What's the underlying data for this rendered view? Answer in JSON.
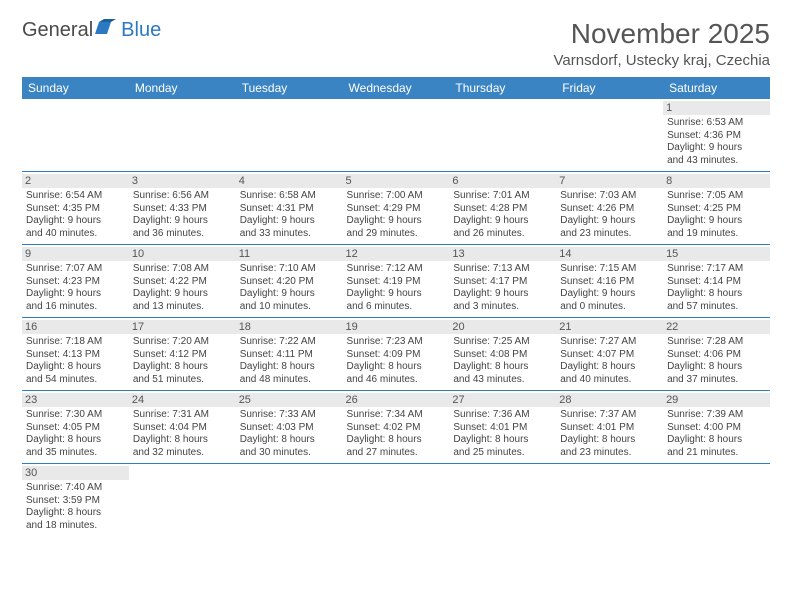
{
  "logo": {
    "text1": "General",
    "text2": "Blue"
  },
  "title": "November 2025",
  "location": "Varnsdorf, Ustecky kraj, Czechia",
  "colors": {
    "header_bg": "#3b84c4",
    "rule": "#2f7ec0",
    "daynum_bg": "#e9e9e9"
  },
  "day_headers": [
    "Sunday",
    "Monday",
    "Tuesday",
    "Wednesday",
    "Thursday",
    "Friday",
    "Saturday"
  ],
  "weeks": [
    [
      null,
      null,
      null,
      null,
      null,
      null,
      {
        "n": "1",
        "sr": "6:53 AM",
        "ss": "4:36 PM",
        "dl1": "9 hours",
        "dl2": "and 43 minutes."
      }
    ],
    [
      {
        "n": "2",
        "sr": "6:54 AM",
        "ss": "4:35 PM",
        "dl1": "9 hours",
        "dl2": "and 40 minutes."
      },
      {
        "n": "3",
        "sr": "6:56 AM",
        "ss": "4:33 PM",
        "dl1": "9 hours",
        "dl2": "and 36 minutes."
      },
      {
        "n": "4",
        "sr": "6:58 AM",
        "ss": "4:31 PM",
        "dl1": "9 hours",
        "dl2": "and 33 minutes."
      },
      {
        "n": "5",
        "sr": "7:00 AM",
        "ss": "4:29 PM",
        "dl1": "9 hours",
        "dl2": "and 29 minutes."
      },
      {
        "n": "6",
        "sr": "7:01 AM",
        "ss": "4:28 PM",
        "dl1": "9 hours",
        "dl2": "and 26 minutes."
      },
      {
        "n": "7",
        "sr": "7:03 AM",
        "ss": "4:26 PM",
        "dl1": "9 hours",
        "dl2": "and 23 minutes."
      },
      {
        "n": "8",
        "sr": "7:05 AM",
        "ss": "4:25 PM",
        "dl1": "9 hours",
        "dl2": "and 19 minutes."
      }
    ],
    [
      {
        "n": "9",
        "sr": "7:07 AM",
        "ss": "4:23 PM",
        "dl1": "9 hours",
        "dl2": "and 16 minutes."
      },
      {
        "n": "10",
        "sr": "7:08 AM",
        "ss": "4:22 PM",
        "dl1": "9 hours",
        "dl2": "and 13 minutes."
      },
      {
        "n": "11",
        "sr": "7:10 AM",
        "ss": "4:20 PM",
        "dl1": "9 hours",
        "dl2": "and 10 minutes."
      },
      {
        "n": "12",
        "sr": "7:12 AM",
        "ss": "4:19 PM",
        "dl1": "9 hours",
        "dl2": "and 6 minutes."
      },
      {
        "n": "13",
        "sr": "7:13 AM",
        "ss": "4:17 PM",
        "dl1": "9 hours",
        "dl2": "and 3 minutes."
      },
      {
        "n": "14",
        "sr": "7:15 AM",
        "ss": "4:16 PM",
        "dl1": "9 hours",
        "dl2": "and 0 minutes."
      },
      {
        "n": "15",
        "sr": "7:17 AM",
        "ss": "4:14 PM",
        "dl1": "8 hours",
        "dl2": "and 57 minutes."
      }
    ],
    [
      {
        "n": "16",
        "sr": "7:18 AM",
        "ss": "4:13 PM",
        "dl1": "8 hours",
        "dl2": "and 54 minutes."
      },
      {
        "n": "17",
        "sr": "7:20 AM",
        "ss": "4:12 PM",
        "dl1": "8 hours",
        "dl2": "and 51 minutes."
      },
      {
        "n": "18",
        "sr": "7:22 AM",
        "ss": "4:11 PM",
        "dl1": "8 hours",
        "dl2": "and 48 minutes."
      },
      {
        "n": "19",
        "sr": "7:23 AM",
        "ss": "4:09 PM",
        "dl1": "8 hours",
        "dl2": "and 46 minutes."
      },
      {
        "n": "20",
        "sr": "7:25 AM",
        "ss": "4:08 PM",
        "dl1": "8 hours",
        "dl2": "and 43 minutes."
      },
      {
        "n": "21",
        "sr": "7:27 AM",
        "ss": "4:07 PM",
        "dl1": "8 hours",
        "dl2": "and 40 minutes."
      },
      {
        "n": "22",
        "sr": "7:28 AM",
        "ss": "4:06 PM",
        "dl1": "8 hours",
        "dl2": "and 37 minutes."
      }
    ],
    [
      {
        "n": "23",
        "sr": "7:30 AM",
        "ss": "4:05 PM",
        "dl1": "8 hours",
        "dl2": "and 35 minutes."
      },
      {
        "n": "24",
        "sr": "7:31 AM",
        "ss": "4:04 PM",
        "dl1": "8 hours",
        "dl2": "and 32 minutes."
      },
      {
        "n": "25",
        "sr": "7:33 AM",
        "ss": "4:03 PM",
        "dl1": "8 hours",
        "dl2": "and 30 minutes."
      },
      {
        "n": "26",
        "sr": "7:34 AM",
        "ss": "4:02 PM",
        "dl1": "8 hours",
        "dl2": "and 27 minutes."
      },
      {
        "n": "27",
        "sr": "7:36 AM",
        "ss": "4:01 PM",
        "dl1": "8 hours",
        "dl2": "and 25 minutes."
      },
      {
        "n": "28",
        "sr": "7:37 AM",
        "ss": "4:01 PM",
        "dl1": "8 hours",
        "dl2": "and 23 minutes."
      },
      {
        "n": "29",
        "sr": "7:39 AM",
        "ss": "4:00 PM",
        "dl1": "8 hours",
        "dl2": "and 21 minutes."
      }
    ],
    [
      {
        "n": "30",
        "sr": "7:40 AM",
        "ss": "3:59 PM",
        "dl1": "8 hours",
        "dl2": "and 18 minutes."
      },
      null,
      null,
      null,
      null,
      null,
      null
    ]
  ],
  "labels": {
    "sunrise": "Sunrise: ",
    "sunset": "Sunset: ",
    "daylight": "Daylight: "
  }
}
